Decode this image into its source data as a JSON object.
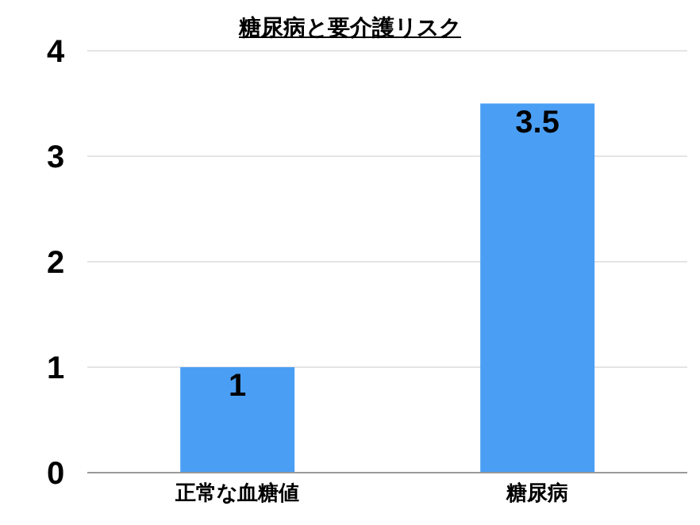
{
  "chart_data": {
    "type": "bar",
    "title": "糖尿病と要介護リスク",
    "categories": [
      "正常な血糖値",
      "糖尿病"
    ],
    "values": [
      1,
      3.5
    ],
    "color": "#4a9ff5",
    "ylim": [
      0,
      4
    ],
    "yticks": [
      0,
      1,
      2,
      3,
      4
    ],
    "grid": "y",
    "data_labels": true
  }
}
